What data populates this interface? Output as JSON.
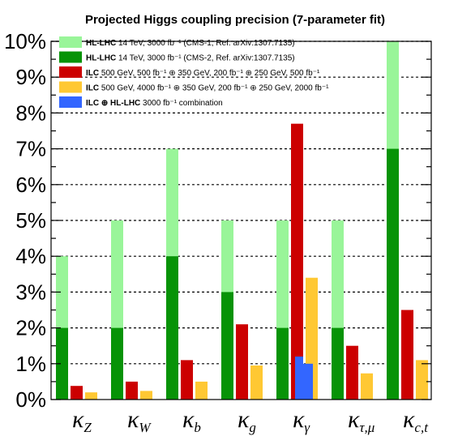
{
  "chart_data": {
    "type": "bar",
    "title": "Projected Higgs coupling precision (7-parameter fit)",
    "xlabel": "",
    "ylabel": "",
    "ylim": [
      0,
      10
    ],
    "grid": "horizontal-dashed",
    "legend_placement": "top-left",
    "yticks": [
      "0%",
      "1%",
      "2%",
      "3%",
      "4%",
      "5%",
      "6%",
      "7%",
      "8%",
      "9%",
      "10%"
    ],
    "categories": [
      {
        "main": "κ",
        "sub": "Z"
      },
      {
        "main": "κ",
        "sub": "W"
      },
      {
        "main": "κ",
        "sub": "b"
      },
      {
        "main": "κ",
        "sub": "g"
      },
      {
        "main": "κ",
        "sub": "γ"
      },
      {
        "main": "κ",
        "sub": "τ,μ"
      },
      {
        "main": "κ",
        "sub": "c,t"
      }
    ],
    "series": [
      {
        "name_bold": "HL-LHC",
        "name": "14 TeV, 3000 fb⁻¹ (CMS-1, Ref. arXiv:1307.7135)",
        "color": "#99f599",
        "values": [
          4,
          5,
          7,
          5,
          5,
          5,
          10
        ]
      },
      {
        "name_bold": "HL-LHC",
        "name": "14 TeV, 3000 fb⁻¹ (CMS-2, Ref. arXiv:1307.7135)",
        "color": "#079307",
        "values": [
          2,
          2,
          4,
          3,
          2,
          2,
          7
        ]
      },
      {
        "name_bold": "ILC",
        "name": "500 GeV,  500 fb⁻¹ ⊕ 350 GeV, 200 fb⁻¹ ⊕ 250 GeV,  500 fb⁻¹",
        "color": "#cc0000",
        "values": [
          0.38,
          0.5,
          1.1,
          2.1,
          7.7,
          1.5,
          2.5
        ]
      },
      {
        "name_bold": "ILC",
        "name": "500 GeV, 4000 fb⁻¹ ⊕ 350 GeV, 200 fb⁻¹ ⊕ 250 GeV, 2000 fb⁻¹",
        "color": "#ffc833",
        "values": [
          0.2,
          0.24,
          0.5,
          0.95,
          3.4,
          0.73,
          1.1
        ]
      },
      {
        "name_bold": "ILC ⊕ HL-LHC",
        "name": "3000 fb⁻¹ combination",
        "color": "#3366ff",
        "values": [
          null,
          null,
          null,
          null,
          1.2,
          null,
          null
        ],
        "values_alt": [
          null,
          null,
          null,
          null,
          1.0,
          null,
          null
        ]
      }
    ]
  }
}
